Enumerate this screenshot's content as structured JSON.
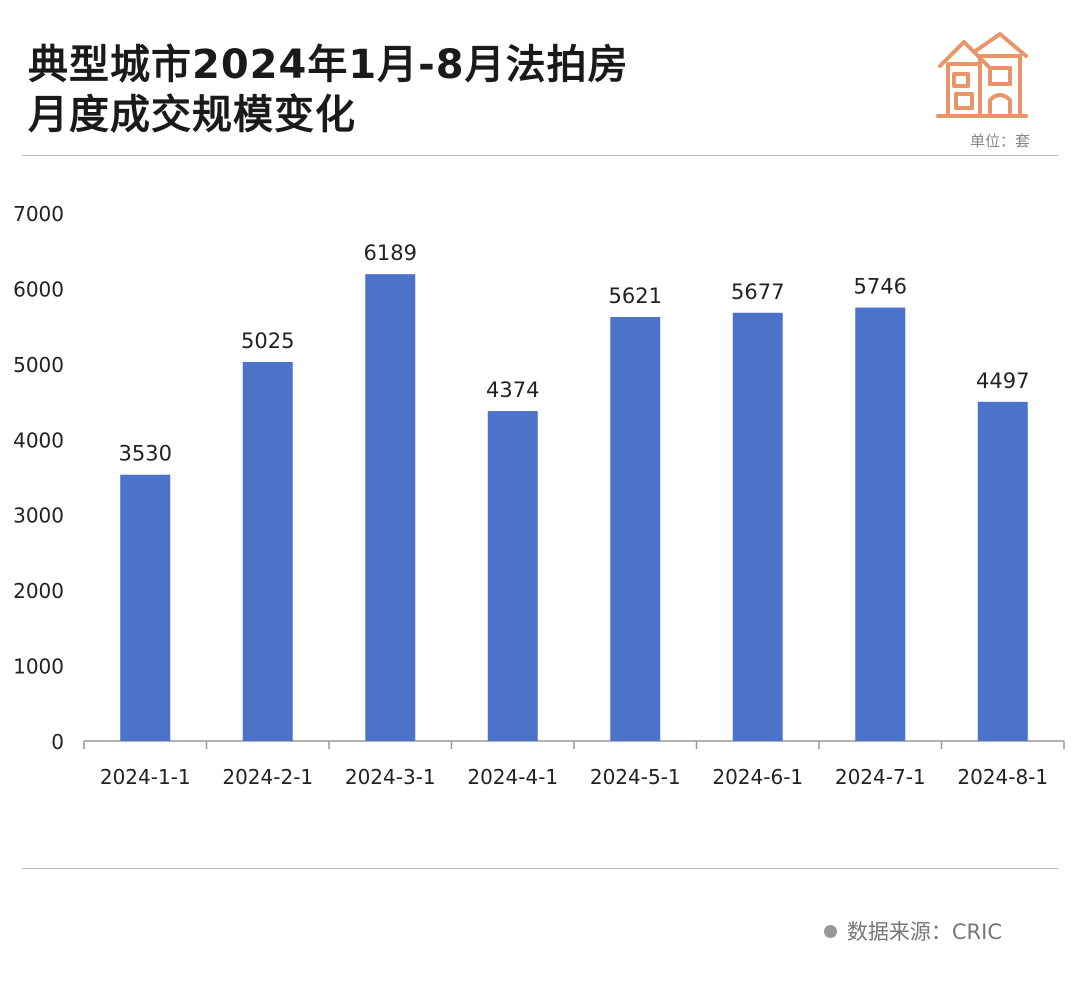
{
  "title": {
    "line1": "典型城市2024年1月-8月法拍房",
    "line2": "月度成交规模变化"
  },
  "unit_label": "单位：套",
  "source": {
    "label": "数据来源：CRIC"
  },
  "icon": "house-icon",
  "colors": {
    "bar": "#4a73c9",
    "icon": "#e8956a",
    "axis": "#999999"
  },
  "chart_data": {
    "type": "bar",
    "categories": [
      "2024-1-1",
      "2024-2-1",
      "2024-3-1",
      "2024-4-1",
      "2024-5-1",
      "2024-6-1",
      "2024-7-1",
      "2024-8-1"
    ],
    "values": [
      3530,
      5025,
      6189,
      4374,
      5621,
      5677,
      5746,
      4497
    ],
    "ylim": [
      0,
      7000
    ],
    "yticks": [
      0,
      1000,
      2000,
      3000,
      4000,
      5000,
      6000,
      7000
    ],
    "data_labels": true,
    "grid": false,
    "legend": "none"
  }
}
